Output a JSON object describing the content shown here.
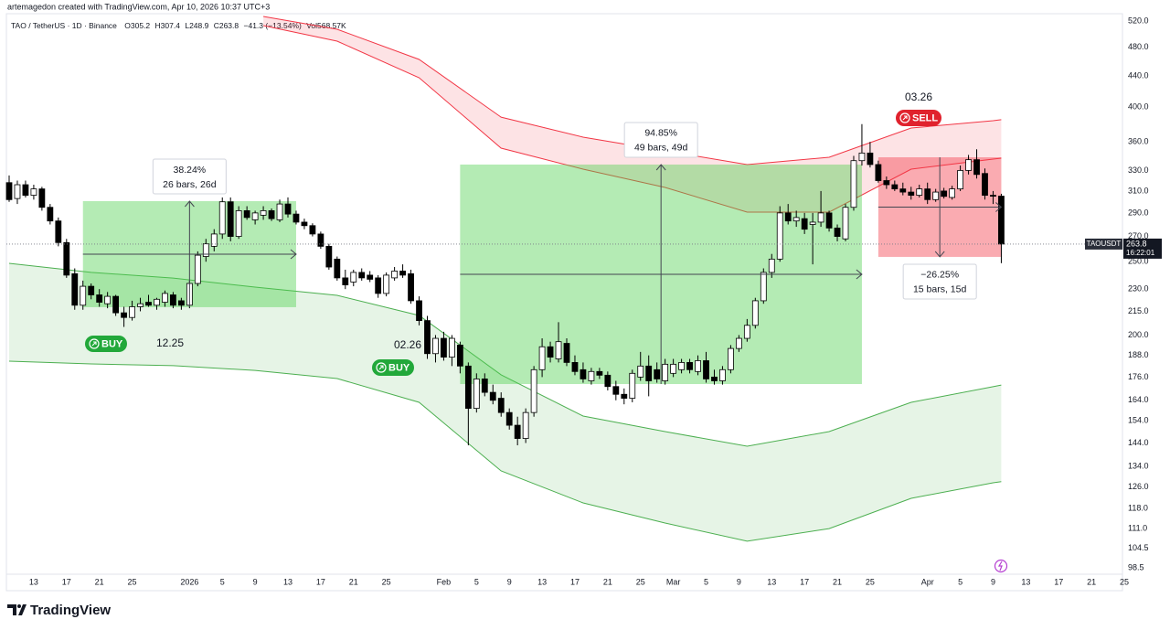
{
  "header": {
    "credit": "artemagedon created with TradingView.com, Apr 10, 2026 10:37 UTC+3",
    "symbol": "TAO / TetherUS · 1D · Binance",
    "ohlc": [
      "O305.2",
      "H307.4",
      "L248.9",
      "C263.8",
      "−41.3 (−13.54%)",
      "Vol568.57K"
    ]
  },
  "chart_data": {
    "type": "candlestick",
    "log_scale": true,
    "grid": false,
    "up_color": "#ffffff",
    "down_color": "#000000",
    "x": [
      "2025-12-10",
      "2025-12-11",
      "2025-12-12",
      "2025-12-13",
      "2025-12-14",
      "2025-12-15",
      "2025-12-16",
      "2025-12-17",
      "2025-12-18",
      "2025-12-19",
      "2025-12-20",
      "2025-12-21",
      "2025-12-22",
      "2025-12-23",
      "2025-12-24",
      "2025-12-25",
      "2025-12-26",
      "2025-12-27",
      "2025-12-28",
      "2025-12-29",
      "2025-12-30",
      "2025-12-31",
      "2026-01-01",
      "2026-01-02",
      "2026-01-03",
      "2026-01-04",
      "2026-01-05",
      "2026-01-06",
      "2026-01-07",
      "2026-01-08",
      "2026-01-09",
      "2026-01-10",
      "2026-01-11",
      "2026-01-12",
      "2026-01-13",
      "2026-01-14",
      "2026-01-15",
      "2026-01-16",
      "2026-01-17",
      "2026-01-18",
      "2026-01-19",
      "2026-01-20",
      "2026-01-21",
      "2026-01-22",
      "2026-01-23",
      "2026-01-24",
      "2026-01-25",
      "2026-01-26",
      "2026-01-27",
      "2026-01-28",
      "2026-01-29",
      "2026-01-30",
      "2026-01-31",
      "2026-02-01",
      "2026-02-02",
      "2026-02-03",
      "2026-02-04",
      "2026-02-05",
      "2026-02-06",
      "2026-02-07",
      "2026-02-08",
      "2026-02-09",
      "2026-02-10",
      "2026-02-11",
      "2026-02-12",
      "2026-02-13",
      "2026-02-14",
      "2026-02-15",
      "2026-02-16",
      "2026-02-17",
      "2026-02-18",
      "2026-02-19",
      "2026-02-20",
      "2026-02-21",
      "2026-02-22",
      "2026-02-23",
      "2026-02-24",
      "2026-02-25",
      "2026-02-26",
      "2026-02-27",
      "2026-02-28",
      "2026-03-01",
      "2026-03-02",
      "2026-03-03",
      "2026-03-04",
      "2026-03-05",
      "2026-03-06",
      "2026-03-07",
      "2026-03-08",
      "2026-03-09",
      "2026-03-10",
      "2026-03-11",
      "2026-03-12",
      "2026-03-13",
      "2026-03-14",
      "2026-03-15",
      "2026-03-16",
      "2026-03-17",
      "2026-03-18",
      "2026-03-19",
      "2026-03-20",
      "2026-03-21",
      "2026-03-22",
      "2026-03-23",
      "2026-03-24",
      "2026-03-25",
      "2026-03-26",
      "2026-03-27",
      "2026-03-28",
      "2026-03-29",
      "2026-03-30",
      "2026-03-31",
      "2026-04-01",
      "2026-04-02",
      "2026-04-03",
      "2026-04-04",
      "2026-04-05",
      "2026-04-06",
      "2026-04-07",
      "2026-04-08",
      "2026-04-09",
      "2026-04-10"
    ],
    "open": [
      318,
      303,
      316,
      306,
      312,
      295,
      283,
      265,
      241,
      219,
      232,
      226,
      220,
      225,
      214,
      211,
      218,
      221,
      219,
      221,
      226,
      222,
      219,
      234,
      254,
      262,
      272,
      300,
      270,
      292,
      284,
      288,
      292,
      284,
      298,
      289,
      282,
      279,
      272,
      262,
      252,
      238,
      235,
      242,
      240,
      238,
      227,
      238,
      243,
      241,
      222,
      209,
      189,
      198,
      187,
      194,
      182,
      160,
      175,
      168,
      165,
      158,
      152,
      146,
      158,
      180,
      193,
      186,
      195,
      184,
      180,
      174,
      179,
      177,
      171,
      167,
      165,
      176,
      182,
      180,
      174,
      178,
      180,
      184,
      179,
      185,
      176,
      174,
      180,
      192,
      198,
      206,
      222,
      242,
      252,
      290,
      283,
      285,
      280,
      282,
      290,
      277,
      268,
      295,
      340,
      348,
      336,
      320,
      316,
      312,
      309,
      306,
      312,
      302,
      310,
      304,
      312,
      330,
      341,
      327,
      306,
      305.2
    ],
    "high": [
      325,
      320,
      320,
      316,
      314,
      298,
      286,
      268,
      245,
      236,
      234,
      230,
      228,
      226,
      218,
      222,
      224,
      226,
      224,
      229,
      228,
      224,
      236,
      258,
      268,
      276,
      304,
      304,
      296,
      296,
      292,
      296,
      294,
      302,
      304,
      292,
      285,
      281,
      274,
      264,
      254,
      244,
      244,
      245,
      243,
      240,
      242,
      246,
      248,
      244,
      225,
      212,
      200,
      202,
      200,
      196,
      184,
      178,
      178,
      172,
      168,
      160,
      156,
      160,
      182,
      198,
      196,
      208,
      198,
      188,
      184,
      181,
      181,
      179,
      174,
      170,
      180,
      190,
      188,
      184,
      186,
      186,
      186,
      186,
      188,
      190,
      180,
      182,
      194,
      200,
      210,
      224,
      245,
      256,
      296,
      298,
      292,
      290,
      290,
      310,
      292,
      280,
      298,
      345,
      380,
      360,
      340,
      324,
      320,
      318,
      314,
      316,
      318,
      312,
      313,
      315,
      335,
      346,
      352,
      332,
      310,
      307.4
    ],
    "low": [
      300,
      298,
      304,
      302,
      292,
      280,
      262,
      238,
      216,
      216,
      223,
      218,
      217,
      212,
      205,
      209,
      215,
      218,
      216,
      218,
      217,
      216,
      217,
      232,
      250,
      258,
      268,
      266,
      268,
      284,
      280,
      284,
      283,
      282,
      286,
      280,
      276,
      270,
      260,
      244,
      236,
      230,
      232,
      236,
      235,
      224,
      225,
      236,
      238,
      220,
      206,
      186,
      184,
      185,
      182,
      178,
      143,
      158,
      166,
      162,
      156,
      150,
      143,
      144,
      156,
      176,
      184,
      184,
      182,
      177,
      173,
      172,
      175,
      169,
      164,
      162,
      163,
      174,
      166,
      173,
      172,
      176,
      178,
      178,
      177,
      173,
      172,
      172,
      178,
      190,
      196,
      204,
      220,
      238,
      250,
      280,
      278,
      272,
      248,
      278,
      274,
      266,
      266,
      292,
      335,
      333,
      318,
      312,
      310,
      306,
      302,
      304,
      298,
      300,
      303,
      302,
      310,
      326,
      322,
      302,
      298,
      248.9
    ],
    "close": [
      302,
      316,
      306,
      312,
      295,
      283,
      265,
      240,
      219,
      232,
      226,
      221,
      225,
      214,
      211,
      218,
      220,
      219,
      223,
      227,
      219,
      219,
      234,
      255,
      264,
      272,
      300,
      270,
      292,
      286,
      290,
      292,
      285,
      298,
      289,
      282,
      279,
      272,
      262,
      246,
      238,
      233,
      242,
      238,
      237,
      227,
      240,
      243,
      240,
      222,
      209,
      189,
      198,
      187,
      198,
      182,
      160,
      175,
      168,
      164,
      158,
      152,
      146,
      158,
      180,
      193,
      187,
      196,
      184,
      179,
      175,
      179,
      177,
      171,
      167,
      165,
      178,
      182,
      174,
      175,
      183,
      183,
      184,
      180,
      185,
      175,
      174,
      180,
      192,
      198,
      206,
      222,
      242,
      252,
      290,
      283,
      286,
      276,
      282,
      290,
      277,
      270,
      295,
      340,
      348,
      336,
      320,
      316,
      312,
      309,
      306,
      312,
      302,
      309,
      305,
      312,
      330,
      341,
      326,
      306,
      305.2,
      263.8
    ],
    "xlim": [
      "2025-12-10",
      "2026-04-25"
    ],
    "ylim": [
      96.6,
      531.7
    ],
    "yticks": [
      {
        "value": 520,
        "label": "520.0"
      },
      {
        "value": 480,
        "label": "480.0"
      },
      {
        "value": 440,
        "label": "440.0"
      },
      {
        "value": 400,
        "label": "400.0"
      },
      {
        "value": 360,
        "label": "360.0"
      },
      {
        "value": 330,
        "label": "330.0"
      },
      {
        "value": 310,
        "label": "310.0"
      },
      {
        "value": 290,
        "label": "290.0"
      },
      {
        "value": 270,
        "label": "270.0"
      },
      {
        "value": 250,
        "label": "250.0"
      },
      {
        "value": 230,
        "label": "230.0"
      },
      {
        "value": 215,
        "label": "215.0"
      },
      {
        "value": 200,
        "label": "200.0"
      },
      {
        "value": 188,
        "label": "188.0"
      },
      {
        "value": 176,
        "label": "176.0"
      },
      {
        "value": 164,
        "label": "164.0"
      },
      {
        "value": 154,
        "label": "154.0"
      },
      {
        "value": 144,
        "label": "144.0"
      },
      {
        "value": 134,
        "label": "134.0"
      },
      {
        "value": 126,
        "label": "126.0"
      },
      {
        "value": 118,
        "label": "118.0"
      },
      {
        "value": 111,
        "label": "111.0"
      },
      104.5,
      98.5
    ],
    "xticks": [
      {
        "value": "2025-12-13",
        "label": "13"
      },
      {
        "value": "2025-12-17",
        "label": "17"
      },
      {
        "value": "2025-12-21",
        "label": "21"
      },
      {
        "value": "2025-12-25",
        "label": "25"
      },
      {
        "value": "2026-01-01",
        "label": "2026"
      },
      {
        "value": "2026-01-05",
        "label": "5"
      },
      {
        "value": "2026-01-09",
        "label": "9"
      },
      {
        "value": "2026-01-13",
        "label": "13"
      },
      {
        "value": "2026-01-17",
        "label": "17"
      },
      {
        "value": "2026-01-21",
        "label": "21"
      },
      {
        "value": "2026-01-25",
        "label": "25"
      },
      {
        "value": "2026-02-01",
        "label": "Feb"
      },
      {
        "value": "2026-02-05",
        "label": "5"
      },
      {
        "value": "2026-02-09",
        "label": "9"
      },
      {
        "value": "2026-02-13",
        "label": "13"
      },
      {
        "value": "2026-02-17",
        "label": "17"
      },
      {
        "value": "2026-02-21",
        "label": "21"
      },
      {
        "value": "2026-02-25",
        "label": "25"
      },
      {
        "value": "2026-03-01",
        "label": "Mar"
      },
      {
        "value": "2026-03-05",
        "label": "5"
      },
      {
        "value": "2026-03-09",
        "label": "9"
      },
      {
        "value": "2026-03-13",
        "label": "13"
      },
      {
        "value": "2026-03-17",
        "label": "17"
      },
      {
        "value": "2026-03-21",
        "label": "21"
      },
      {
        "value": "2026-03-25",
        "label": "25"
      },
      {
        "value": "2026-04-01",
        "label": "Apr"
      },
      {
        "value": "2026-04-05",
        "label": "5"
      },
      {
        "value": "2026-04-09",
        "label": "9"
      },
      {
        "value": "2026-04-13",
        "label": "13"
      },
      {
        "value": "2026-04-17",
        "label": "17"
      },
      {
        "value": "2026-04-21",
        "label": "21"
      },
      {
        "value": "2026-04-25",
        "label": "25"
      }
    ],
    "bands": [
      {
        "color": "#f23645",
        "x": [
          "2026-01-10",
          "2026-01-19",
          "2026-01-29",
          "2026-02-08",
          "2026-02-18",
          "2026-02-28",
          "2026-03-10",
          "2026-03-20",
          "2026-03-30",
          "2026-04-09",
          "2026-04-10"
        ],
        "upper": [
          527.3,
          507.2,
          462.6,
          388.2,
          365.2,
          350.3,
          336.0,
          343.5,
          375.5,
          384.0,
          385.1
        ],
        "lower": [
          512.8,
          489.1,
          437.6,
          353.2,
          331.3,
          313.4,
          290.7,
          290.7,
          331.3,
          341.6,
          342.6
        ]
      },
      {
        "color": "#4caf50",
        "x": [
          "2025-12-10",
          "2025-12-20",
          "2025-12-30",
          "2026-01-09",
          "2026-01-19",
          "2026-01-29",
          "2026-02-08",
          "2026-02-18",
          "2026-02-28",
          "2026-03-10",
          "2026-03-20",
          "2026-03-30",
          "2026-04-09",
          "2026-04-10"
        ],
        "upper": [
          248.8,
          242.0,
          237.9,
          231.4,
          225.7,
          212.3,
          177.2,
          156.3,
          149.1,
          142.6,
          149.1,
          163.0,
          170.9,
          171.8
        ],
        "lower": [
          184.7,
          183.2,
          182.2,
          179.6,
          175.2,
          163.0,
          132.3,
          120.0,
          112.9,
          106.8,
          111.0,
          121.7,
          127.6,
          128.0
        ]
      }
    ],
    "ranges": [
      {
        "from": "2025-12-19",
        "to": "2026-01-14",
        "high": 300.6,
        "low": 217.7,
        "color": "#4cd04c",
        "change": "38.24%",
        "bars": "26 bars, 26d"
      },
      {
        "from": "2026-02-03",
        "to": "2026-03-24",
        "high": 336.0,
        "low": 172.3,
        "color": "#4cd04c",
        "change": "94.85%",
        "bars": "49 bars, 49d"
      },
      {
        "from": "2026-03-26",
        "to": "2026-04-10",
        "high": 343.5,
        "low": 253.7,
        "color": "#f23645",
        "change": "−26.25%",
        "bars": "15 bars, 15d"
      }
    ],
    "signals": [
      {
        "label": "BUY",
        "date": "12.25",
        "color": "#22a83a"
      },
      {
        "label": "BUY",
        "date": "02.26",
        "color": "#22a83a"
      },
      {
        "label": "SELL",
        "date": "03.26",
        "color": "#e0222d"
      }
    ],
    "symbol_tag": "TAOUSDT",
    "countdown": "16:22:01"
  },
  "footer": {
    "brand": "TradingView"
  }
}
